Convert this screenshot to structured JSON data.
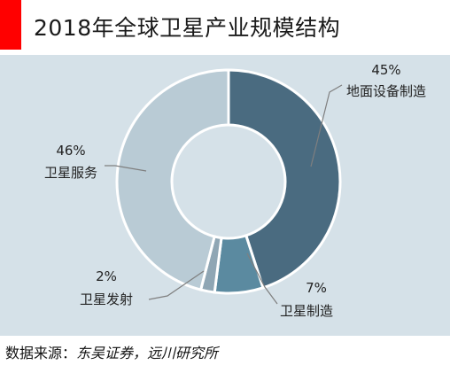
{
  "title": "2018年全球卫星产业规模结构",
  "source": {
    "label": "数据来源：",
    "text": "东吴证券，远川研究所"
  },
  "colors": {
    "plot_background": "#d5e1e8",
    "accent": "#ff0000"
  },
  "chart_data": {
    "type": "pie",
    "donut": true,
    "title": "2018年全球卫星产业规模结构",
    "unit": "%",
    "slices": [
      {
        "label": "地面设备制造",
        "value": 45,
        "display": "45%",
        "color": "#4a6b80"
      },
      {
        "label": "卫星制造",
        "value": 7,
        "display": "7%",
        "color": "#5b8aa0"
      },
      {
        "label": "卫星发射",
        "value": 2,
        "display": "2%",
        "color": "#8fa6b4"
      },
      {
        "label": "卫星服务",
        "value": 46,
        "display": "46%",
        "color": "#b9cbd5"
      }
    ]
  }
}
